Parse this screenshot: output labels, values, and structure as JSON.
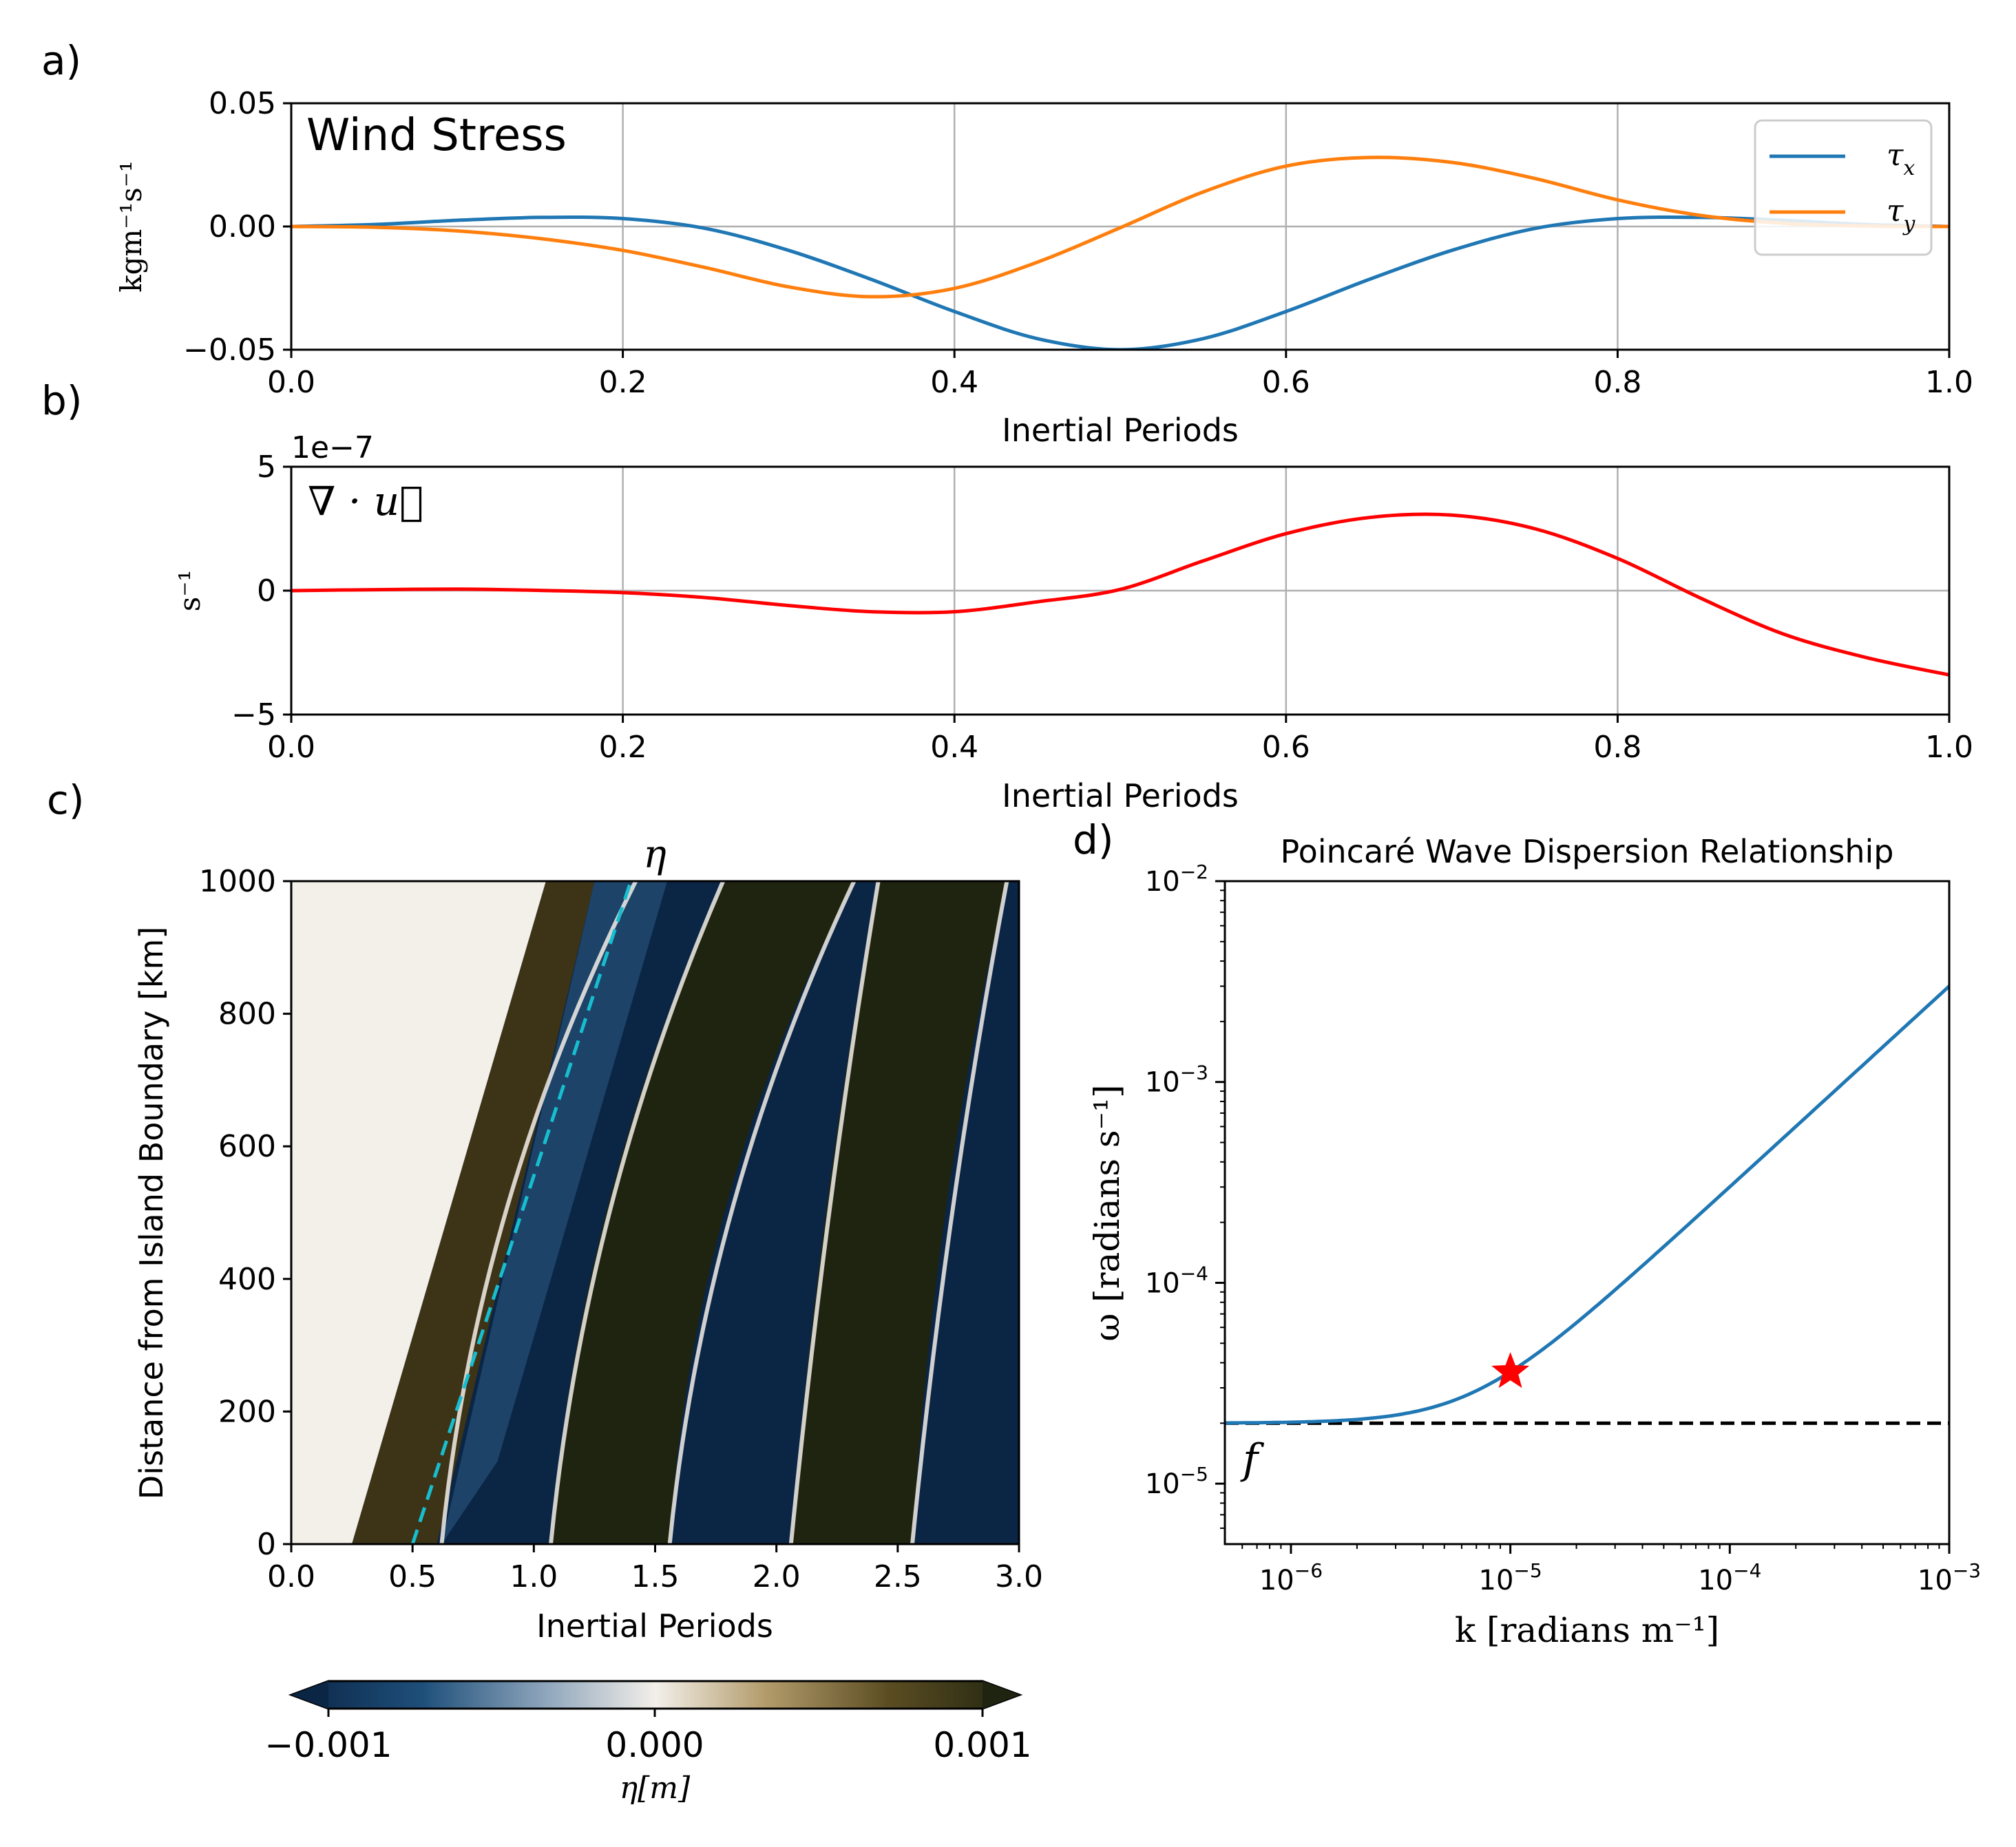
{
  "chart_data": [
    {
      "panel": "a)",
      "type": "line",
      "annotation": "Wind Stress",
      "xlabel": "Inertial Periods",
      "ylabel": "kgm⁻¹s⁻¹",
      "xlim": [
        0,
        1
      ],
      "ylim": [
        -0.05,
        0.05
      ],
      "xticks": [
        "0.0",
        "0.2",
        "0.4",
        "0.6",
        "0.8",
        "1.0"
      ],
      "yticks": [
        "0.05",
        "0.00",
        "−0.05"
      ],
      "ytick_values": [
        0.05,
        0.0,
        -0.05
      ],
      "grid": true,
      "legend_position": "right",
      "series": [
        {
          "name": "τ",
          "name_sub": "x",
          "color": "#1f77b4",
          "x": [
            0,
            0.05,
            0.1,
            0.15,
            0.2,
            0.25,
            0.3,
            0.35,
            0.4,
            0.45,
            0.5,
            0.55,
            0.6,
            0.65,
            0.7,
            0.75,
            0.8,
            0.85,
            0.9,
            0.95,
            1.0
          ],
          "y": [
            0,
            0.0008,
            0.0025,
            0.0037,
            0.0032,
            -0.0008,
            -0.0097,
            -0.0215,
            -0.0345,
            -0.0455,
            -0.05,
            -0.0455,
            -0.0345,
            -0.0215,
            -0.0097,
            -0.0008,
            0.0032,
            0.0037,
            0.0025,
            0.0008,
            0
          ]
        },
        {
          "name": "τ",
          "name_sub": "y",
          "color": "#ff7f0e",
          "x": [
            0,
            0.05,
            0.1,
            0.15,
            0.2,
            0.25,
            0.3,
            0.35,
            0.4,
            0.45,
            0.5,
            0.55,
            0.6,
            0.65,
            0.7,
            0.75,
            0.8,
            0.85,
            0.9,
            0.95,
            1.0
          ],
          "y": [
            0,
            -0.0003,
            -0.0018,
            -0.0049,
            -0.0097,
            -0.0167,
            -0.0245,
            -0.0285,
            -0.0251,
            -0.0145,
            -0.0005,
            0.014,
            0.0245,
            0.028,
            0.026,
            0.0195,
            0.0108,
            0.0045,
            0.0013,
            0.0002,
            0
          ]
        }
      ]
    },
    {
      "panel": "b)",
      "type": "line",
      "annotation": "∇ · u⃗",
      "xlabel": "Inertial Periods",
      "ylabel": "s⁻¹",
      "offset_text": "1e−7",
      "xlim": [
        0,
        1
      ],
      "ylim": [
        -5,
        5
      ],
      "xticks": [
        "0.0",
        "0.2",
        "0.4",
        "0.6",
        "0.8",
        "1.0"
      ],
      "yticks": [
        "5",
        "0",
        "−5"
      ],
      "ytick_values": [
        5,
        0,
        -5
      ],
      "grid": true,
      "series": [
        {
          "color": "#ff0000",
          "x": [
            0,
            0.05,
            0.1,
            0.15,
            0.2,
            0.25,
            0.3,
            0.35,
            0.4,
            0.45,
            0.5,
            0.55,
            0.6,
            0.65,
            0.7,
            0.75,
            0.8,
            0.85,
            0.9,
            0.95,
            1.0
          ],
          "y": [
            0,
            0.04,
            0.06,
            0.01,
            -0.08,
            -0.28,
            -0.6,
            -0.85,
            -0.85,
            -0.45,
            0.05,
            1.2,
            2.3,
            2.95,
            3.05,
            2.5,
            1.3,
            -0.3,
            -1.75,
            -2.7,
            -3.4
          ]
        }
      ]
    },
    {
      "panel": "c)",
      "type": "heatmap",
      "title": "η",
      "xlabel": "Inertial Periods",
      "ylabel": "Distance from Island Boundary [km]",
      "xlim": [
        0,
        3
      ],
      "ylim": [
        0,
        1000
      ],
      "xticks": [
        "0.0",
        "0.5",
        "1.0",
        "1.5",
        "2.0",
        "2.5",
        "3.0"
      ],
      "yticks": [
        "1000",
        "800",
        "600",
        "400",
        "200",
        "0"
      ],
      "ytick_values": [
        1000,
        800,
        600,
        400,
        200,
        0
      ],
      "colorbar": {
        "label": "η[m]",
        "range": [
          -0.001,
          0.001
        ],
        "ticks": [
          "−0.001",
          "0.000",
          "0.001"
        ],
        "extend": "both",
        "colors": [
          "#0b2545",
          "#f3efe9",
          "#1f2410"
        ]
      },
      "front_line": {
        "style": "dashed",
        "color": "#17becf",
        "x": [
          0.5,
          1.4
        ],
        "y": [
          0,
          1000
        ]
      }
    },
    {
      "panel": "d)",
      "type": "line",
      "title": "Poincaré Wave Dispersion Relationship",
      "xlabel": "k [radians m⁻¹]",
      "ylabel": "ω [radians s⁻¹]",
      "xscale": "log",
      "yscale": "log",
      "xlim": [
        5e-07,
        0.001
      ],
      "ylim": [
        5e-06,
        0.01
      ],
      "xticks": [
        {
          "base": "10",
          "exp": "−6",
          "value": 1e-06
        },
        {
          "base": "10",
          "exp": "−5",
          "value": 1e-05
        },
        {
          "base": "10",
          "exp": "−4",
          "value": 0.0001
        },
        {
          "base": "10",
          "exp": "−3",
          "value": 0.001
        }
      ],
      "yticks": [
        {
          "base": "10",
          "exp": "−2",
          "value": 0.01
        },
        {
          "base": "10",
          "exp": "−3",
          "value": 0.001
        },
        {
          "base": "10",
          "exp": "−4",
          "value": 0.0001
        },
        {
          "base": "10",
          "exp": "−5",
          "value": 1e-05
        }
      ],
      "grid": false,
      "f_label": "f",
      "f_value": 2e-05,
      "c_phase": 3.0,
      "series": [
        {
          "color": "#1f77b4",
          "x_range": [
            5e-07,
            0.001
          ]
        }
      ],
      "marker": {
        "x": 1e-05,
        "y": 3.6e-05,
        "color": "#ff0000",
        "shape": "star"
      }
    }
  ]
}
